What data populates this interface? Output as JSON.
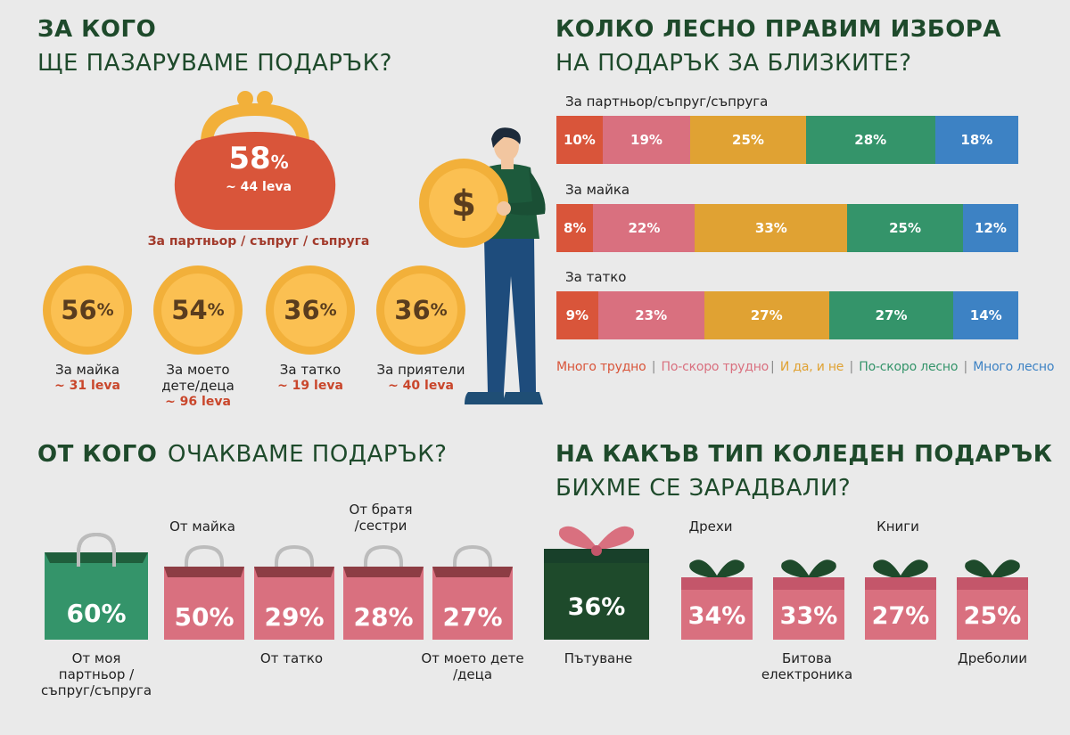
{
  "sections": {
    "who_for": {
      "title_bold": "ЗА КОГО",
      "title_light": "ЩЕ ПАЗАРУВАМЕ ПОДАРЪК?"
    },
    "ease": {
      "title_bold": "КОЛКО ЛЕСНО ПРАВИМ ИЗБОРА",
      "title_light": "НА ПОДАРЪК ЗА БЛИЗКИТЕ?"
    },
    "from_whom": {
      "title_bold": "ОТ КОГО",
      "title_light": "ОЧАКВАМЕ ПОДАРЪК?"
    },
    "gift_type": {
      "title_bold": "НА КАКЪВ ТИП КОЛЕДЕН ПОДАРЪК",
      "title_light": "БИХМЕ СЕ ЗАРАДВАЛИ?"
    }
  },
  "colors": {
    "very_hard": "#d9553a",
    "rather_hard": "#d9707f",
    "both": "#e0a233",
    "rather_easy": "#34946a",
    "very_easy": "#3d82c4",
    "dark_green": "#1e4a2b"
  },
  "chart_data": [
    {
      "type": "bar",
      "title": "ЗА КОГО ЩЕ ПАЗАРУВАМЕ ПОДАРЪК?",
      "categories": [
        "За партньор / съпруг / съпруга",
        "За майка",
        "За моето дете/деца",
        "За татко",
        "За приятели"
      ],
      "values": [
        58,
        56,
        54,
        36,
        36
      ],
      "value_labels": [
        "58%",
        "56%",
        "54%",
        "36%",
        "36%"
      ],
      "amounts": [
        "~ 44 leva",
        "~ 31 leva",
        "~ 96 leva",
        "~ 19 leva",
        "~ 40 leva"
      ]
    },
    {
      "type": "bar",
      "stacked": true,
      "title": "КОЛКО ЛЕСНО ПРАВИМ ИЗБОРА НА ПОДАРЪК ЗА БЛИЗКИТЕ?",
      "categories": [
        "За партньор/съпруг/съпруга",
        "За майка",
        "За татко"
      ],
      "series": [
        {
          "name": "Много трудно",
          "values": [
            10,
            8,
            9
          ]
        },
        {
          "name": "По-скоро трудно",
          "values": [
            19,
            22,
            23
          ]
        },
        {
          "name": "И да, и не",
          "values": [
            25,
            33,
            27
          ]
        },
        {
          "name": "По-скоро лесно",
          "values": [
            28,
            25,
            27
          ]
        },
        {
          "name": "Много лесно",
          "values": [
            18,
            12,
            14
          ]
        }
      ],
      "legend": "bottom"
    },
    {
      "type": "bar",
      "title": "ОТ КОГО ОЧАКВАМЕ ПОДАРЪК?",
      "categories": [
        "От моя партньор /съпруг/съпруга",
        "От майка",
        "От татко",
        "От братя /сестри",
        "От моето дете /деца"
      ],
      "values": [
        60,
        50,
        29,
        28,
        27
      ]
    },
    {
      "type": "bar",
      "title": "НА КАКЪВ ТИП КОЛЕДЕН ПОДАРЪК БИХМЕ СЕ ЗАРАДВАЛИ?",
      "categories": [
        "Пътуване",
        "Дрехи",
        "Битова електроника",
        "Книги",
        "Дреболии"
      ],
      "values": [
        36,
        34,
        33,
        27,
        25
      ]
    }
  ],
  "text": {
    "purse": {
      "value": "58",
      "pct": "%",
      "amount": "~ 44 leva",
      "label": "За партньор / съпруг / съпруга"
    },
    "coins": [
      {
        "value": "56",
        "pct": "%",
        "label": "За майка",
        "amount": "~ 31 leva"
      },
      {
        "value": "54",
        "pct": "%",
        "label": "За моето дете/деца",
        "amount": "~ 96 leva"
      },
      {
        "value": "36",
        "pct": "%",
        "label": "За татко",
        "amount": "~ 19 leva"
      },
      {
        "value": "36",
        "pct": "%",
        "label": "За приятели",
        "amount": "~ 40 leva"
      }
    ],
    "bars": [
      {
        "label": "За партньор/съпруг/съпруга",
        "segs": [
          "10%",
          "19%",
          "25%",
          "28%",
          "18%"
        ]
      },
      {
        "label": "За майка",
        "segs": [
          "8%",
          "22%",
          "33%",
          "25%",
          "12%"
        ]
      },
      {
        "label": "За татко",
        "segs": [
          "9%",
          "23%",
          "27%",
          "27%",
          "14%"
        ]
      }
    ],
    "legend": [
      "Много трудно",
      "По-скоро трудно",
      "И да, и не",
      "По-скоро лесно",
      "Много лесно"
    ],
    "bags": [
      {
        "value": "60%",
        "label": "От моя партньор /съпруг/съпруга"
      },
      {
        "value": "50%",
        "label": "От майка"
      },
      {
        "value": "29%",
        "label": "От татко"
      },
      {
        "value": "28%",
        "label": "От братя /сестри"
      },
      {
        "value": "27%",
        "label": "От моето дете /деца"
      }
    ],
    "gifts": [
      {
        "value": "36%",
        "label": "Пътуване"
      },
      {
        "value": "34%",
        "label": "Дрехи"
      },
      {
        "value": "33%",
        "label": "Битова електроника"
      },
      {
        "value": "27%",
        "label": "Книги"
      },
      {
        "value": "25%",
        "label": "Дреболии"
      }
    ],
    "coin_symbol": "$"
  }
}
